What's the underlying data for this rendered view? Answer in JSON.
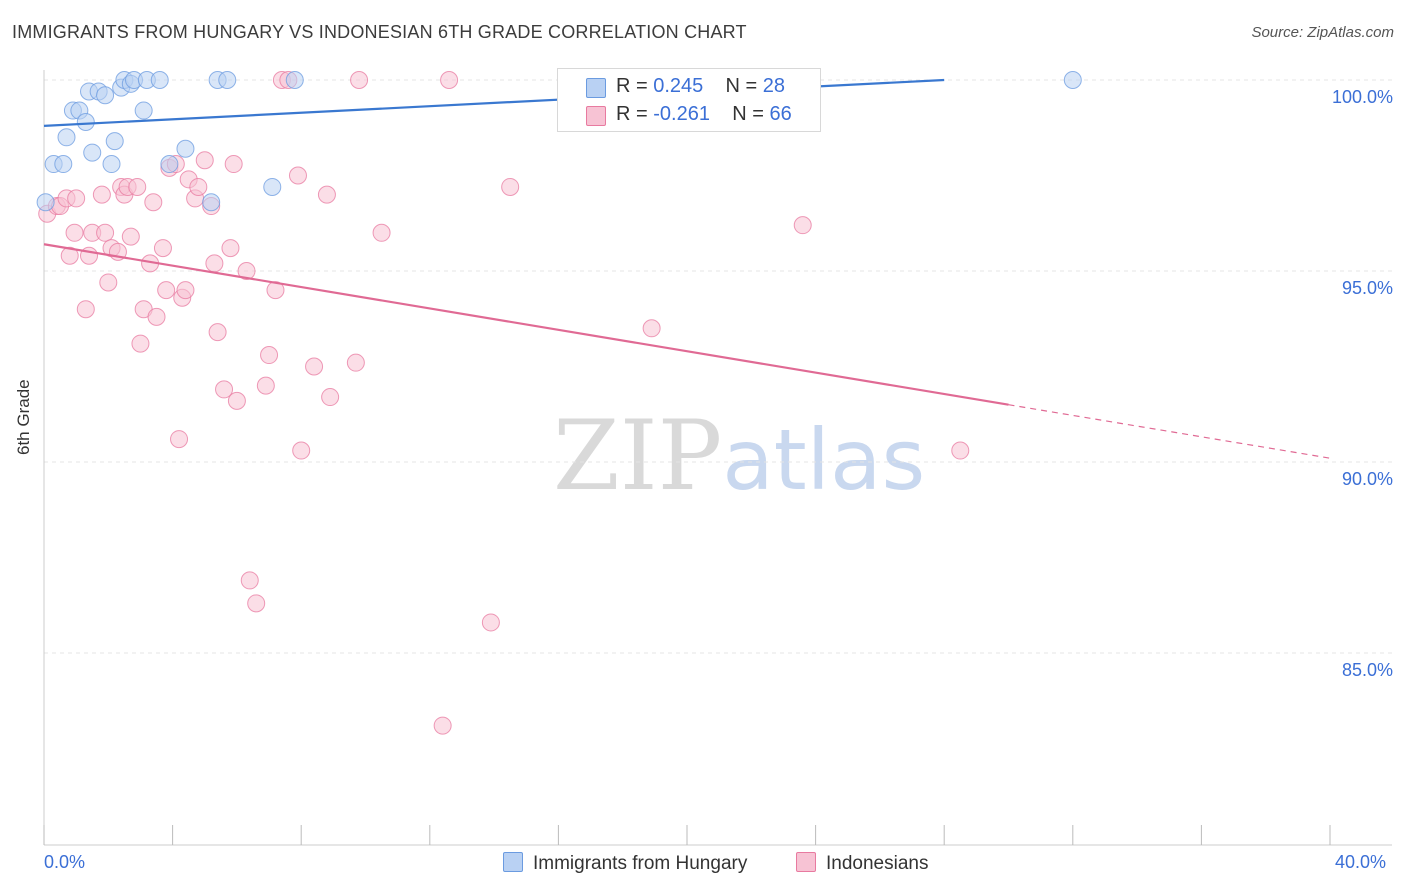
{
  "title": "IMMIGRANTS FROM HUNGARY VS INDONESIAN 6TH GRADE CORRELATION CHART",
  "source": "Source: ZipAtlas.com",
  "watermark": {
    "zip": "ZIP",
    "atlas": "atlas"
  },
  "colors": {
    "blue": "#6b9be0",
    "blue_fill": "#b9d1f3",
    "pink": "#e87aa0",
    "pink_fill": "#f7c3d4",
    "axis_text": "#3b6fd6"
  },
  "legend_top": {
    "rows": [
      {
        "r_label": "R = ",
        "r_value": "0.245",
        "n_label": "N = ",
        "n_value": "28"
      },
      {
        "r_label": "R = ",
        "r_value": "-0.261",
        "n_label": "N = ",
        "n_value": "66"
      }
    ]
  },
  "legend_bottom": [
    "Immigrants from Hungary",
    "Indonesians"
  ],
  "chart_data": {
    "type": "scatter",
    "title": "IMMIGRANTS FROM HUNGARY VS INDONESIAN 6TH GRADE CORRELATION CHART",
    "xlabel": "",
    "ylabel": "6th Grade",
    "xlim": [
      0,
      40
    ],
    "ylim": [
      80.5,
      100.5
    ],
    "x_tick_labels": [
      "0.0%",
      "40.0%"
    ],
    "y_ticks": [
      100,
      95,
      90,
      85
    ],
    "y_tick_labels": [
      "100.0%",
      "95.0%",
      "90.0%",
      "85.0%"
    ],
    "grid": true,
    "series": [
      {
        "name": "Immigrants from Hungary",
        "color": "#6b9be0",
        "trend": {
          "x": [
            0,
            28
          ],
          "y": [
            98.8,
            100.0
          ]
        },
        "points": [
          [
            0.05,
            96.8
          ],
          [
            0.3,
            97.8
          ],
          [
            0.6,
            97.8
          ],
          [
            0.7,
            98.5
          ],
          [
            0.9,
            99.2
          ],
          [
            1.1,
            99.2
          ],
          [
            1.3,
            98.9
          ],
          [
            1.4,
            99.7
          ],
          [
            1.5,
            98.1
          ],
          [
            1.7,
            99.7
          ],
          [
            1.9,
            99.6
          ],
          [
            2.1,
            97.8
          ],
          [
            2.2,
            98.4
          ],
          [
            2.4,
            99.8
          ],
          [
            2.5,
            100.0
          ],
          [
            2.7,
            99.9
          ],
          [
            2.8,
            100.0
          ],
          [
            3.1,
            99.2
          ],
          [
            3.2,
            100.0
          ],
          [
            3.6,
            100.0
          ],
          [
            3.9,
            97.8
          ],
          [
            5.2,
            96.8
          ],
          [
            5.4,
            100.0
          ],
          [
            5.7,
            100.0
          ],
          [
            7.1,
            97.2
          ],
          [
            7.8,
            100.0
          ],
          [
            32.0,
            100.0
          ],
          [
            4.4,
            98.2
          ]
        ]
      },
      {
        "name": "Indonesians",
        "color": "#e87aa0",
        "trend": {
          "x": [
            0,
            30.0
          ],
          "y": [
            95.7,
            91.5
          ]
        },
        "trend_dashed": {
          "x": [
            30.0,
            40
          ],
          "y": [
            91.5,
            90.1
          ]
        },
        "points": [
          [
            0.1,
            96.5
          ],
          [
            0.4,
            96.7
          ],
          [
            0.5,
            96.7
          ],
          [
            0.7,
            96.9
          ],
          [
            0.8,
            95.4
          ],
          [
            0.95,
            96.0
          ],
          [
            1.0,
            96.9
          ],
          [
            1.3,
            94.0
          ],
          [
            1.4,
            95.4
          ],
          [
            1.5,
            96.0
          ],
          [
            1.8,
            97.0
          ],
          [
            1.9,
            96.0
          ],
          [
            2.0,
            94.7
          ],
          [
            2.1,
            95.6
          ],
          [
            2.3,
            95.5
          ],
          [
            2.4,
            97.2
          ],
          [
            2.5,
            97.0
          ],
          [
            2.6,
            97.2
          ],
          [
            2.7,
            95.9
          ],
          [
            2.9,
            97.2
          ],
          [
            3.0,
            93.1
          ],
          [
            3.1,
            94.0
          ],
          [
            3.3,
            95.2
          ],
          [
            3.4,
            96.8
          ],
          [
            3.5,
            93.8
          ],
          [
            3.7,
            95.6
          ],
          [
            3.8,
            94.5
          ],
          [
            3.9,
            97.7
          ],
          [
            4.1,
            97.8
          ],
          [
            4.2,
            90.6
          ],
          [
            4.3,
            94.3
          ],
          [
            4.4,
            94.5
          ],
          [
            4.5,
            97.4
          ],
          [
            4.7,
            96.9
          ],
          [
            4.8,
            97.2
          ],
          [
            5.0,
            97.9
          ],
          [
            5.2,
            96.7
          ],
          [
            5.3,
            95.2
          ],
          [
            5.4,
            93.4
          ],
          [
            5.6,
            91.9
          ],
          [
            5.8,
            95.6
          ],
          [
            5.9,
            97.8
          ],
          [
            6.0,
            91.6
          ],
          [
            6.3,
            95.0
          ],
          [
            6.4,
            86.9
          ],
          [
            6.6,
            86.3
          ],
          [
            6.9,
            92.0
          ],
          [
            7.0,
            92.8
          ],
          [
            7.2,
            94.5
          ],
          [
            7.4,
            100.0
          ],
          [
            7.6,
            100.0
          ],
          [
            7.9,
            97.5
          ],
          [
            8.0,
            90.3
          ],
          [
            8.4,
            92.5
          ],
          [
            8.8,
            97.0
          ],
          [
            8.9,
            91.7
          ],
          [
            9.7,
            92.6
          ],
          [
            9.8,
            100.0
          ],
          [
            10.5,
            96.0
          ],
          [
            12.6,
            100.0
          ],
          [
            13.9,
            85.8
          ],
          [
            14.5,
            97.2
          ],
          [
            12.4,
            83.1
          ],
          [
            18.9,
            93.5
          ],
          [
            23.6,
            96.2
          ],
          [
            28.5,
            90.3
          ]
        ]
      }
    ]
  }
}
